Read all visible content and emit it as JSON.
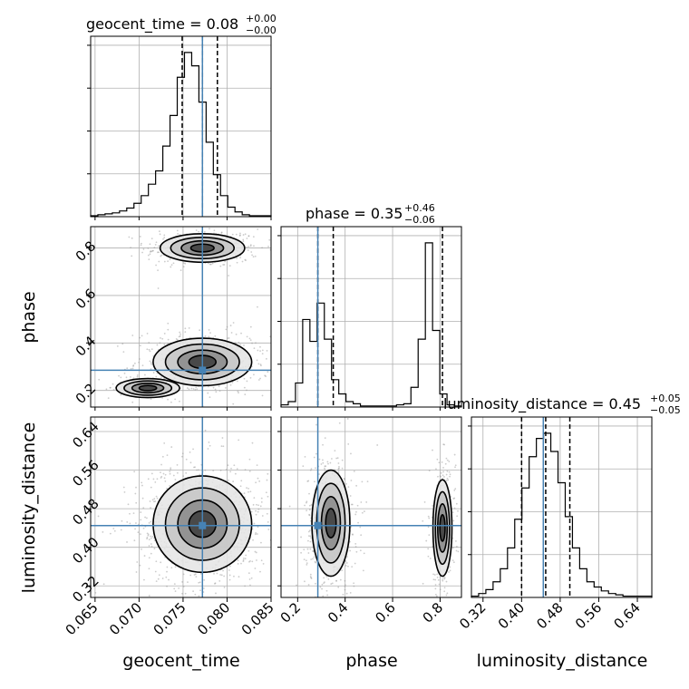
{
  "chart_data": {
    "type": "corner",
    "parameters": [
      "geocent_time",
      "phase",
      "luminosity_distance"
    ],
    "truths": [
      0.0772,
      0.285,
      0.445
    ],
    "colors": {
      "truth": "#4682b4",
      "hist": "#000000",
      "grid": "#b0b0b0",
      "points": "#9a9a9a"
    },
    "ranges": {
      "geocent_time": [
        0.0645,
        0.085
      ],
      "phase": [
        0.13,
        0.89
      ],
      "luminosity_distance": [
        0.296,
        0.67
      ]
    },
    "ticks": {
      "geocent_time": [
        0.065,
        0.07,
        0.075,
        0.08,
        0.085
      ],
      "phase": [
        0.2,
        0.4,
        0.6,
        0.8
      ],
      "luminosity_distance": [
        0.32,
        0.4,
        0.48,
        0.56,
        0.64
      ]
    },
    "tick_labels": {
      "geocent_time": [
        "0.065",
        "0.070",
        "0.075",
        "0.080",
        "0.085"
      ],
      "phase": [
        "0.2",
        "0.4",
        "0.6",
        "0.8"
      ],
      "luminosity_distance": [
        "0.32",
        "0.40",
        "0.48",
        "0.56",
        "0.64"
      ]
    },
    "titles": [
      {
        "main": "geocent_time = 0.08",
        "plus": "+0.00",
        "minus": "−0.00"
      },
      {
        "main": "phase = 0.35",
        "plus": "+0.46",
        "minus": "−0.06"
      },
      {
        "main": "luminosity_distance = 0.45",
        "plus": "+0.05",
        "minus": "−0.05"
      }
    ],
    "quantiles": {
      "geocent_time": [
        0.0749,
        0.0772,
        0.0789
      ],
      "phase": [
        0.285,
        0.35,
        0.81
      ],
      "luminosity_distance": [
        0.4,
        0.45,
        0.5
      ]
    },
    "histograms": {
      "geocent_time": [
        1,
        2,
        3,
        4,
        6,
        9,
        14,
        22,
        34,
        48,
        74,
        106,
        146,
        172,
        158,
        120,
        78,
        44,
        22,
        10,
        5,
        2,
        1,
        1,
        1
      ],
      "phase": [
        2,
        5,
        22,
        80,
        60,
        95,
        62,
        25,
        12,
        5,
        3,
        1,
        1,
        1,
        1,
        1,
        2,
        3,
        18,
        62,
        150,
        70,
        12,
        2,
        1
      ],
      "luminosity_distance": [
        1,
        3,
        6,
        12,
        22,
        38,
        60,
        84,
        108,
        122,
        126,
        112,
        88,
        62,
        38,
        22,
        12,
        8,
        5,
        3,
        2,
        1,
        1,
        1,
        1
      ]
    },
    "clusters": {
      "phase_vs_geocent_time": [
        {
          "center": [
            0.0772,
            0.8
          ],
          "sigma": [
            0.0024,
            0.03
          ],
          "weight": 0.45
        },
        {
          "center": [
            0.0772,
            0.32
          ],
          "sigma": [
            0.0028,
            0.05
          ],
          "weight": 0.55
        },
        {
          "center": [
            0.071,
            0.21
          ],
          "sigma": [
            0.0018,
            0.02
          ],
          "weight": 0.08
        }
      ],
      "luminosity_distance_vs_geocent_time": [
        {
          "center": [
            0.0772,
            0.448
          ],
          "sigma": [
            0.0028,
            0.05
          ],
          "weight": 1.0
        }
      ],
      "luminosity_distance_vs_phase": [
        {
          "center": [
            0.34,
            0.45
          ],
          "sigma": [
            0.04,
            0.055
          ],
          "weight": 0.62
        },
        {
          "center": [
            0.81,
            0.44
          ],
          "sigma": [
            0.02,
            0.05
          ],
          "weight": 0.38
        }
      ]
    },
    "grid": true
  }
}
